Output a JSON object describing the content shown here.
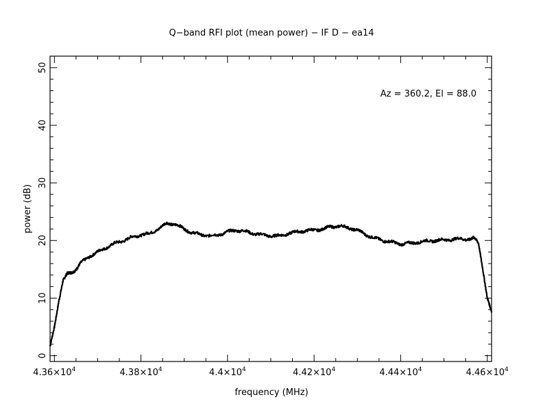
{
  "chart_data": {
    "type": "line",
    "title": "Q−band RFI plot (mean power) − IF D − ea14",
    "xlabel": "frequency (MHz)",
    "ylabel": "power (dB)",
    "annotation": "Az = 360.2, El = 88.0",
    "xlim": [
      43590,
      44610
    ],
    "ylim": [
      -1,
      52
    ],
    "grid": false,
    "x_ticks": [
      {
        "value": 43600,
        "mantissa": "4.36×10",
        "exponent": "4"
      },
      {
        "value": 43800,
        "mantissa": "4.38×10",
        "exponent": "4"
      },
      {
        "value": 44000,
        "mantissa": "4.4×10",
        "exponent": "4"
      },
      {
        "value": 44200,
        "mantissa": "4.42×10",
        "exponent": "4"
      },
      {
        "value": 44400,
        "mantissa": "4.44×10",
        "exponent": "4"
      },
      {
        "value": 44600,
        "mantissa": "4.46×10",
        "exponent": "4"
      }
    ],
    "y_ticks": [
      {
        "value": 0,
        "label": "0"
      },
      {
        "value": 10,
        "label": "10"
      },
      {
        "value": 20,
        "label": "20"
      },
      {
        "value": 30,
        "label": "30"
      },
      {
        "value": 40,
        "label": "40"
      },
      {
        "value": 50,
        "label": "50"
      }
    ],
    "series": [
      {
        "color": "#000000",
        "x": [
          43590,
          43600,
          43610,
          43620,
          43630,
          43640,
          43650,
          43660,
          43680,
          43700,
          43720,
          43740,
          43760,
          43780,
          43800,
          43820,
          43840,
          43860,
          43880,
          43900,
          43920,
          43940,
          43960,
          43980,
          44000,
          44020,
          44040,
          44060,
          44080,
          44100,
          44120,
          44140,
          44160,
          44180,
          44200,
          44220,
          44240,
          44260,
          44280,
          44300,
          44320,
          44340,
          44360,
          44380,
          44400,
          44420,
          44440,
          44460,
          44480,
          44500,
          44520,
          44540,
          44560,
          44570,
          44580,
          44590,
          44600,
          44610
        ],
        "y": [
          1.5,
          5,
          9.5,
          13,
          14.2,
          14.5,
          15,
          16,
          17.2,
          18,
          18.8,
          19.5,
          20,
          20.6,
          21,
          21.2,
          22,
          23,
          22.8,
          22,
          21.3,
          21,
          20.8,
          21,
          21.5,
          21.8,
          21.6,
          21.2,
          21,
          20.8,
          20.8,
          21.2,
          21.5,
          21.7,
          21.8,
          22,
          22.4,
          22.5,
          22.2,
          21.8,
          21,
          20.4,
          20,
          19.7,
          19.4,
          19.5,
          19.7,
          19.9,
          20,
          20.1,
          20.2,
          20.3,
          20.2,
          20.4,
          19.5,
          15,
          10,
          7.5
        ]
      }
    ]
  }
}
